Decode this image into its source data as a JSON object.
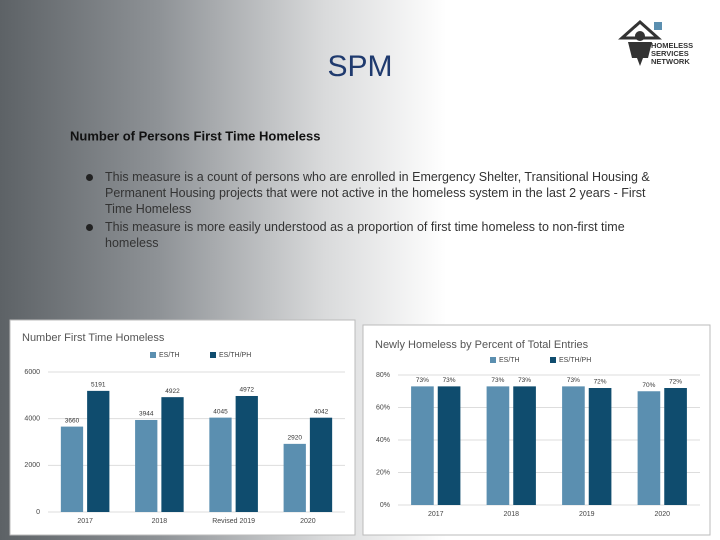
{
  "header": {
    "title": "SPM",
    "logo": [
      "HOMELESS",
      "SERVICES",
      "NETWORK"
    ]
  },
  "section": {
    "heading": "Number of Persons First Time Homeless",
    "bullets": [
      "This measure is a count of persons who are enrolled in Emergency Shelter, Transitional Housing & Permanent Housing projects that were not active in the homeless system in the last 2 years - First Time Homeless",
      "This measure is more easily understood as a proportion of first time homeless to non-first time homeless"
    ]
  },
  "chart_data": [
    {
      "type": "bar",
      "title": "Number First Time Homeless",
      "categories": [
        "2017",
        "2018",
        "Revised 2019",
        "2020"
      ],
      "series": [
        {
          "name": "ES/TH",
          "color": "#5b8fb0",
          "values": [
            3660,
            3944,
            4045,
            2920
          ]
        },
        {
          "name": "ES/TH/PH",
          "color": "#0f4c6e",
          "values": [
            5191,
            4922,
            4972,
            4042
          ]
        }
      ],
      "ylim": [
        0,
        6000
      ],
      "yticks": [
        0,
        2000,
        4000,
        6000
      ],
      "grid": true
    },
    {
      "type": "bar",
      "title": "Newly Homeless by Percent of Total Entries",
      "categories": [
        "2017",
        "2018",
        "2019",
        "2020"
      ],
      "series": [
        {
          "name": "ES/TH",
          "color": "#5b8fb0",
          "values": [
            73,
            73,
            73,
            70
          ],
          "value_labels": [
            "73%",
            "73%",
            "73%",
            "70%"
          ]
        },
        {
          "name": "ES/TH/PH",
          "color": "#0f4c6e",
          "values": [
            73,
            73,
            72,
            72
          ],
          "value_labels": [
            "73%",
            "73%",
            "72%",
            "72%"
          ]
        }
      ],
      "ylim": [
        0,
        80
      ],
      "yticks": [
        {
          "value": 0,
          "label": "0%"
        },
        {
          "value": 20,
          "label": "20%"
        },
        {
          "value": 40,
          "label": "40%"
        },
        {
          "value": 60,
          "label": "60%"
        },
        {
          "value": 80,
          "label": "80%"
        }
      ],
      "grid": true
    }
  ]
}
